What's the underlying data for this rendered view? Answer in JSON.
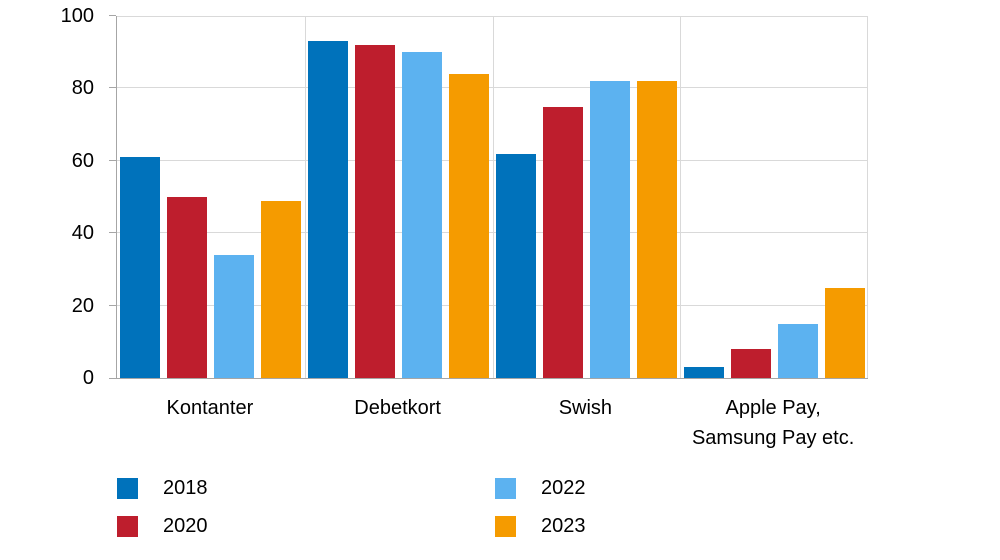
{
  "chart_data": {
    "type": "bar",
    "title": "",
    "categories": [
      "Kontanter",
      "Debetkort",
      "Swish",
      "Apple Pay, Samsung Pay etc."
    ],
    "category_label_lines": [
      [
        "Kontanter"
      ],
      [
        "Debetkort"
      ],
      [
        "Swish"
      ],
      [
        "Apple Pay,",
        "Samsung Pay etc."
      ]
    ],
    "series": [
      {
        "name": "2018",
        "color": "#0072BB",
        "values": [
          61,
          93,
          62,
          3
        ]
      },
      {
        "name": "2020",
        "color": "#BE1E2D",
        "values": [
          50,
          92,
          75,
          8
        ]
      },
      {
        "name": "2022",
        "color": "#5CB2F0",
        "values": [
          34,
          90,
          82,
          15
        ]
      },
      {
        "name": "2023",
        "color": "#F59B00",
        "values": [
          49,
          84,
          82,
          25
        ]
      }
    ],
    "xlabel": "",
    "ylabel": "",
    "ylim": [
      0,
      100
    ],
    "yticks": [
      0,
      20,
      40,
      60,
      80,
      100
    ],
    "grid": true,
    "legend_position": "bottom-left",
    "legend_rows": [
      [
        "2018",
        "2022"
      ],
      [
        "2020",
        "2023"
      ]
    ]
  },
  "colors": {
    "grid": "#D9D9D9",
    "axis": "#A6A6A6",
    "text": "#000000",
    "background": "#FFFFFF"
  }
}
